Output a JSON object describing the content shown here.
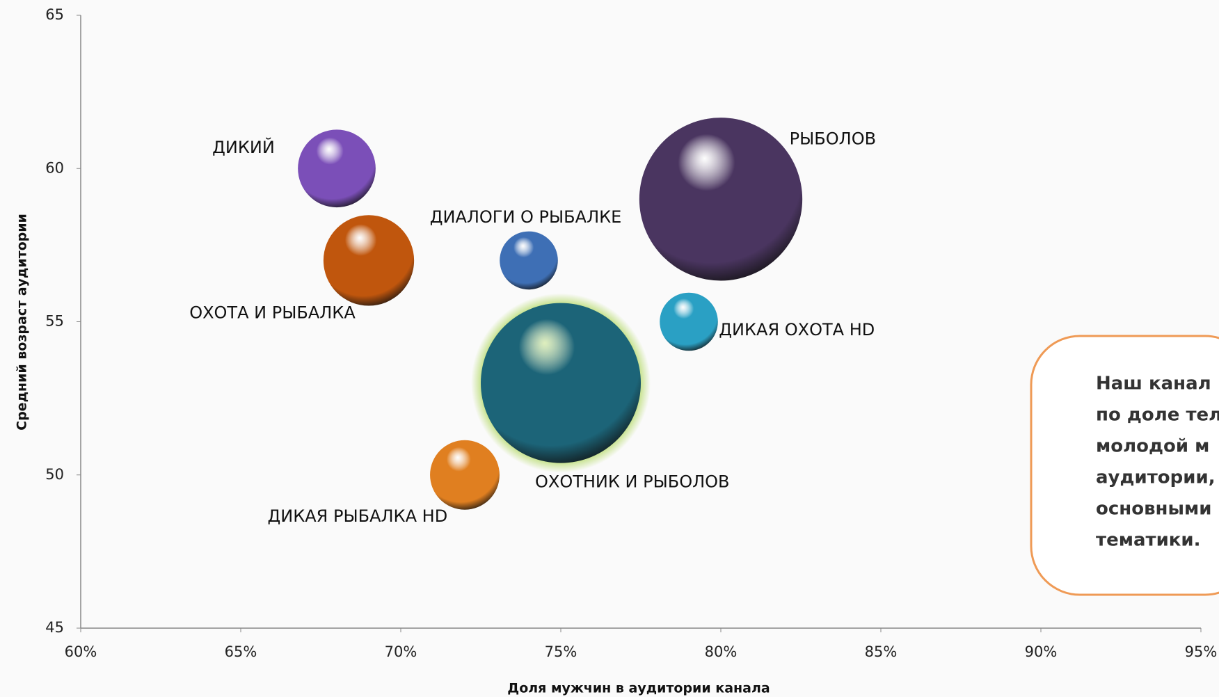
{
  "chart_data": {
    "type": "bubble",
    "x_label": "Доля мужчин в аудитории канала",
    "y_label": "Средний возраст аудитории",
    "xlim": [
      60,
      95
    ],
    "xticks": [
      {
        "value": 60,
        "label": "60%"
      },
      {
        "value": 65,
        "label": "65%"
      },
      {
        "value": 70,
        "label": "70%"
      },
      {
        "value": 75,
        "label": "75%"
      },
      {
        "value": 80,
        "label": "80%"
      },
      {
        "value": 85,
        "label": "85%"
      },
      {
        "value": 90,
        "label": "90%"
      },
      {
        "value": 95,
        "label": "95%"
      }
    ],
    "ylim": [
      45,
      65
    ],
    "yticks": [
      45,
      50,
      55,
      60,
      65
    ],
    "series": [
      {
        "name": "ДИКИЙ",
        "color": "#7b4fb8",
        "x": [
          68
        ],
        "values": [
          60
        ],
        "sizes": [
          25
        ]
      },
      {
        "name": "ОХОТА И РЫБАЛКА",
        "color": "#c0560d",
        "x": [
          69
        ],
        "values": [
          57
        ],
        "sizes": [
          34
        ]
      },
      {
        "name": "ДИАЛОГИ О РЫБАЛКЕ",
        "color": "#3e6fb5",
        "x": [
          74
        ],
        "values": [
          57
        ],
        "sizes": [
          14
        ]
      },
      {
        "name": "РЫБОЛОВ",
        "color": "#4a3560",
        "x": [
          80
        ],
        "values": [
          59
        ],
        "sizes": [
          110
        ]
      },
      {
        "name": "ДИКАЯ ОХОТА HD",
        "color": "#2aa0c4",
        "x": [
          79
        ],
        "values": [
          55
        ],
        "sizes": [
          14
        ]
      },
      {
        "name": "ОХОТНИК И РЫБОЛОВ",
        "color": "#1c6478",
        "x": [
          75
        ],
        "values": [
          53
        ],
        "sizes": [
          106
        ]
      },
      {
        "name": "ДИКАЯ РЫБАЛКА HD",
        "color": "#e07f20",
        "x": [
          72
        ],
        "values": [
          50
        ],
        "sizes": [
          20
        ]
      }
    ],
    "annotation": [
      "Наш канал",
      "по доле тел",
      "молодой м",
      "аудитории,",
      "основными",
      "тематики."
    ]
  }
}
